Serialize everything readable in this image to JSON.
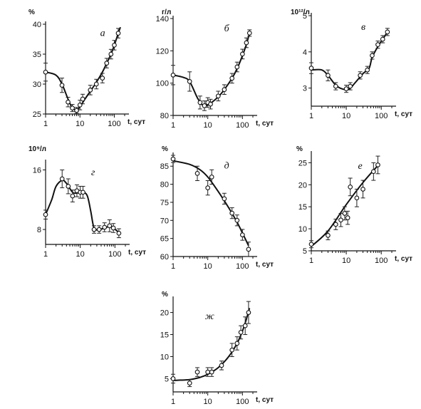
{
  "chart_data": [
    {
      "type": "line",
      "panel": "а",
      "ylabel": "%",
      "xlabel": "t, сут",
      "xscale": "log",
      "xlim": [
        1,
        200
      ],
      "ylim": [
        25,
        40
      ],
      "yticks": [
        25,
        30,
        35,
        40
      ],
      "xticks": [
        1,
        10,
        100
      ],
      "points": [
        {
          "x": 1,
          "y": 32,
          "err": 1.5
        },
        {
          "x": 3,
          "y": 29.8,
          "err": 1.2
        },
        {
          "x": 4.5,
          "y": 27,
          "err": 0.8
        },
        {
          "x": 6,
          "y": 26,
          "err": 0.6
        },
        {
          "x": 8,
          "y": 25.6,
          "err": 0.5
        },
        {
          "x": 10,
          "y": 26.5,
          "err": 0.8
        },
        {
          "x": 12,
          "y": 27.5,
          "err": 0.8
        },
        {
          "x": 20,
          "y": 29,
          "err": 0.8
        },
        {
          "x": 30,
          "y": 30,
          "err": 0.8
        },
        {
          "x": 45,
          "y": 31,
          "err": 0.8
        },
        {
          "x": 60,
          "y": 33.5,
          "err": 0.8
        },
        {
          "x": 80,
          "y": 35,
          "err": 0.8
        },
        {
          "x": 100,
          "y": 36.5,
          "err": 0.8
        },
        {
          "x": 130,
          "y": 38.5,
          "err": 0.8
        }
      ],
      "curve": [
        [
          1,
          32
        ],
        [
          2,
          31.5
        ],
        [
          3,
          30
        ],
        [
          4.5,
          27.5
        ],
        [
          6,
          26
        ],
        [
          8,
          25.7
        ],
        [
          10,
          26.2
        ],
        [
          14,
          27.5
        ],
        [
          20,
          28.8
        ],
        [
          30,
          30.3
        ],
        [
          45,
          32
        ],
        [
          60,
          33.5
        ],
        [
          80,
          35
        ],
        [
          100,
          36.5
        ],
        [
          130,
          38.5
        ],
        [
          150,
          39.5
        ]
      ]
    },
    {
      "type": "line",
      "panel": "б",
      "ylabel": "г/л",
      "xlabel": "t, сут",
      "xscale": "log",
      "xlim": [
        1,
        200
      ],
      "ylim": [
        80,
        140
      ],
      "yticks": [
        80,
        100,
        120,
        140
      ],
      "xticks": [
        1,
        10,
        100
      ],
      "points": [
        {
          "x": 1,
          "y": 105,
          "err": 6
        },
        {
          "x": 3,
          "y": 101,
          "err": 6
        },
        {
          "x": 6,
          "y": 88,
          "err": 4
        },
        {
          "x": 8,
          "y": 86,
          "err": 3
        },
        {
          "x": 10,
          "y": 88,
          "err": 3
        },
        {
          "x": 12,
          "y": 87,
          "err": 3
        },
        {
          "x": 20,
          "y": 92,
          "err": 3
        },
        {
          "x": 30,
          "y": 96,
          "err": 3
        },
        {
          "x": 50,
          "y": 103,
          "err": 3
        },
        {
          "x": 70,
          "y": 110,
          "err": 3
        },
        {
          "x": 100,
          "y": 118,
          "err": 3
        },
        {
          "x": 130,
          "y": 125,
          "err": 3
        },
        {
          "x": 160,
          "y": 131,
          "err": 2
        }
      ],
      "curve": [
        [
          1,
          105
        ],
        [
          2,
          103.5
        ],
        [
          3,
          101
        ],
        [
          5,
          91
        ],
        [
          7,
          86.5
        ],
        [
          9,
          86
        ],
        [
          12,
          87.5
        ],
        [
          20,
          91.5
        ],
        [
          30,
          96
        ],
        [
          50,
          103
        ],
        [
          70,
          109
        ],
        [
          100,
          117
        ],
        [
          130,
          124
        ],
        [
          160,
          131
        ]
      ]
    },
    {
      "type": "line",
      "panel": "в",
      "ylabel": "10¹²/л",
      "xlabel": "t, сут",
      "xscale": "log",
      "xlim": [
        1,
        200
      ],
      "ylim": [
        2.5,
        5
      ],
      "yticks": [
        3,
        4,
        5
      ],
      "xticks": [
        1,
        10,
        100
      ],
      "points": [
        {
          "x": 1,
          "y": 3.55,
          "err": 0.15
        },
        {
          "x": 3,
          "y": 3.35,
          "err": 0.15
        },
        {
          "x": 5,
          "y": 3.05,
          "err": 0.1
        },
        {
          "x": 10,
          "y": 2.98,
          "err": 0.1
        },
        {
          "x": 13,
          "y": 3.05,
          "err": 0.1
        },
        {
          "x": 25,
          "y": 3.35,
          "err": 0.1
        },
        {
          "x": 40,
          "y": 3.5,
          "err": 0.1
        },
        {
          "x": 55,
          "y": 3.9,
          "err": 0.1
        },
        {
          "x": 80,
          "y": 4.2,
          "err": 0.1
        },
        {
          "x": 110,
          "y": 4.35,
          "err": 0.1
        },
        {
          "x": 150,
          "y": 4.55,
          "err": 0.1
        }
      ],
      "curve": [
        [
          1,
          3.5
        ],
        [
          2,
          3.5
        ],
        [
          3,
          3.35
        ],
        [
          5,
          3.08
        ],
        [
          8,
          2.97
        ],
        [
          12,
          2.97
        ],
        [
          18,
          3.15
        ],
        [
          30,
          3.4
        ],
        [
          45,
          3.55
        ],
        [
          55,
          3.85
        ],
        [
          80,
          4.15
        ],
        [
          110,
          4.35
        ],
        [
          150,
          4.55
        ]
      ]
    },
    {
      "type": "line",
      "panel": "г",
      "ylabel": "10⁹/л",
      "xlabel": "t, сут",
      "xscale": "log",
      "xlim": [
        1,
        200
      ],
      "ylim": [
        6,
        17
      ],
      "yticks": [
        8,
        16
      ],
      "xticks": [
        1,
        10,
        100
      ],
      "points": [
        {
          "x": 1,
          "y": 10,
          "err": 0.6
        },
        {
          "x": 3,
          "y": 14.8,
          "err": 1.2
        },
        {
          "x": 4.5,
          "y": 13.8,
          "err": 1
        },
        {
          "x": 6,
          "y": 12.5,
          "err": 0.8
        },
        {
          "x": 8,
          "y": 13.2,
          "err": 0.8
        },
        {
          "x": 10,
          "y": 13,
          "err": 0.8
        },
        {
          "x": 12,
          "y": 13,
          "err": 0.8
        },
        {
          "x": 25,
          "y": 8,
          "err": 0.5
        },
        {
          "x": 35,
          "y": 8,
          "err": 0.5
        },
        {
          "x": 50,
          "y": 8.3,
          "err": 0.6
        },
        {
          "x": 70,
          "y": 8.5,
          "err": 0.8
        },
        {
          "x": 90,
          "y": 8.2,
          "err": 0.6
        },
        {
          "x": 130,
          "y": 7.5,
          "err": 0.6
        }
      ],
      "curve": [
        [
          1,
          10
        ],
        [
          1.5,
          12
        ],
        [
          2,
          13.8
        ],
        [
          3,
          14.6
        ],
        [
          4,
          14.2
        ],
        [
          6,
          13
        ],
        [
          8,
          12.9
        ],
        [
          12,
          13
        ],
        [
          16,
          12.5
        ],
        [
          20,
          10.5
        ],
        [
          25,
          8.2
        ],
        [
          35,
          8
        ],
        [
          50,
          8.2
        ],
        [
          70,
          8.4
        ],
        [
          90,
          8.2
        ],
        [
          130,
          7.6
        ]
      ]
    },
    {
      "type": "line",
      "panel": "д",
      "ylabel": "%",
      "xlabel": "t, сут",
      "xscale": "log",
      "xlim": [
        1,
        200
      ],
      "ylim": [
        60,
        88
      ],
      "yticks": [
        60,
        65,
        70,
        75,
        80,
        85
      ],
      "xticks": [
        1,
        10,
        100
      ],
      "points": [
        {
          "x": 1,
          "y": 87,
          "err": 1
        },
        {
          "x": 5,
          "y": 83,
          "err": 2
        },
        {
          "x": 10,
          "y": 79,
          "err": 2
        },
        {
          "x": 13,
          "y": 82,
          "err": 2
        },
        {
          "x": 30,
          "y": 76,
          "err": 1.5
        },
        {
          "x": 50,
          "y": 72,
          "err": 1.5
        },
        {
          "x": 70,
          "y": 70,
          "err": 1.5
        },
        {
          "x": 100,
          "y": 66,
          "err": 1.5
        },
        {
          "x": 150,
          "y": 62,
          "err": 2
        }
      ],
      "curve": [
        [
          1,
          86.5
        ],
        [
          3,
          85.5
        ],
        [
          6,
          84
        ],
        [
          10,
          82
        ],
        [
          20,
          78
        ],
        [
          40,
          73.5
        ],
        [
          70,
          69.5
        ],
        [
          100,
          66.5
        ],
        [
          150,
          63
        ]
      ]
    },
    {
      "type": "line",
      "panel": "е",
      "ylabel": "%",
      "xlabel": "t, сут",
      "xscale": "log",
      "xlim": [
        1,
        200
      ],
      "ylim": [
        5,
        27
      ],
      "yticks": [
        5,
        10,
        15,
        20,
        25
      ],
      "xticks": [
        1,
        10,
        100
      ],
      "points": [
        {
          "x": 1,
          "y": 6.5,
          "err": 0.8
        },
        {
          "x": 3,
          "y": 8.5,
          "err": 1
        },
        {
          "x": 5,
          "y": 11,
          "err": 1.2
        },
        {
          "x": 7,
          "y": 12,
          "err": 1.5
        },
        {
          "x": 9,
          "y": 13.5,
          "err": 1.5
        },
        {
          "x": 11,
          "y": 12.5,
          "err": 1.5
        },
        {
          "x": 13,
          "y": 19.5,
          "err": 2
        },
        {
          "x": 20,
          "y": 17,
          "err": 2
        },
        {
          "x": 30,
          "y": 19,
          "err": 2
        },
        {
          "x": 60,
          "y": 23,
          "err": 2
        },
        {
          "x": 80,
          "y": 24.5,
          "err": 2
        }
      ],
      "curve": [
        [
          1,
          6
        ],
        [
          3,
          9.5
        ],
        [
          10,
          15.5
        ],
        [
          30,
          20.5
        ],
        [
          90,
          24.8
        ]
      ]
    },
    {
      "type": "line",
      "panel": "ж",
      "ylabel": "%",
      "xlabel": "t, сут",
      "xscale": "log",
      "xlim": [
        1,
        200
      ],
      "ylim": [
        2,
        23
      ],
      "yticks": [
        5,
        10,
        15,
        20
      ],
      "xticks": [
        1,
        10,
        100
      ],
      "points": [
        {
          "x": 1,
          "y": 5,
          "err": 1
        },
        {
          "x": 3,
          "y": 4,
          "err": 0.8
        },
        {
          "x": 5,
          "y": 6.5,
          "err": 1
        },
        {
          "x": 10,
          "y": 6.5,
          "err": 1
        },
        {
          "x": 13,
          "y": 6.5,
          "err": 1
        },
        {
          "x": 25,
          "y": 8,
          "err": 1
        },
        {
          "x": 50,
          "y": 11.5,
          "err": 1.5
        },
        {
          "x": 70,
          "y": 13,
          "err": 1.5
        },
        {
          "x": 90,
          "y": 15.5,
          "err": 1.5
        },
        {
          "x": 120,
          "y": 17,
          "err": 2
        },
        {
          "x": 150,
          "y": 20,
          "err": 2.5
        }
      ],
      "curve": [
        [
          1,
          4.6
        ],
        [
          3,
          4.8
        ],
        [
          6,
          5.3
        ],
        [
          10,
          6
        ],
        [
          20,
          7.5
        ],
        [
          40,
          10
        ],
        [
          70,
          13
        ],
        [
          100,
          15.8
        ],
        [
          130,
          18.5
        ],
        [
          160,
          21
        ]
      ]
    }
  ]
}
